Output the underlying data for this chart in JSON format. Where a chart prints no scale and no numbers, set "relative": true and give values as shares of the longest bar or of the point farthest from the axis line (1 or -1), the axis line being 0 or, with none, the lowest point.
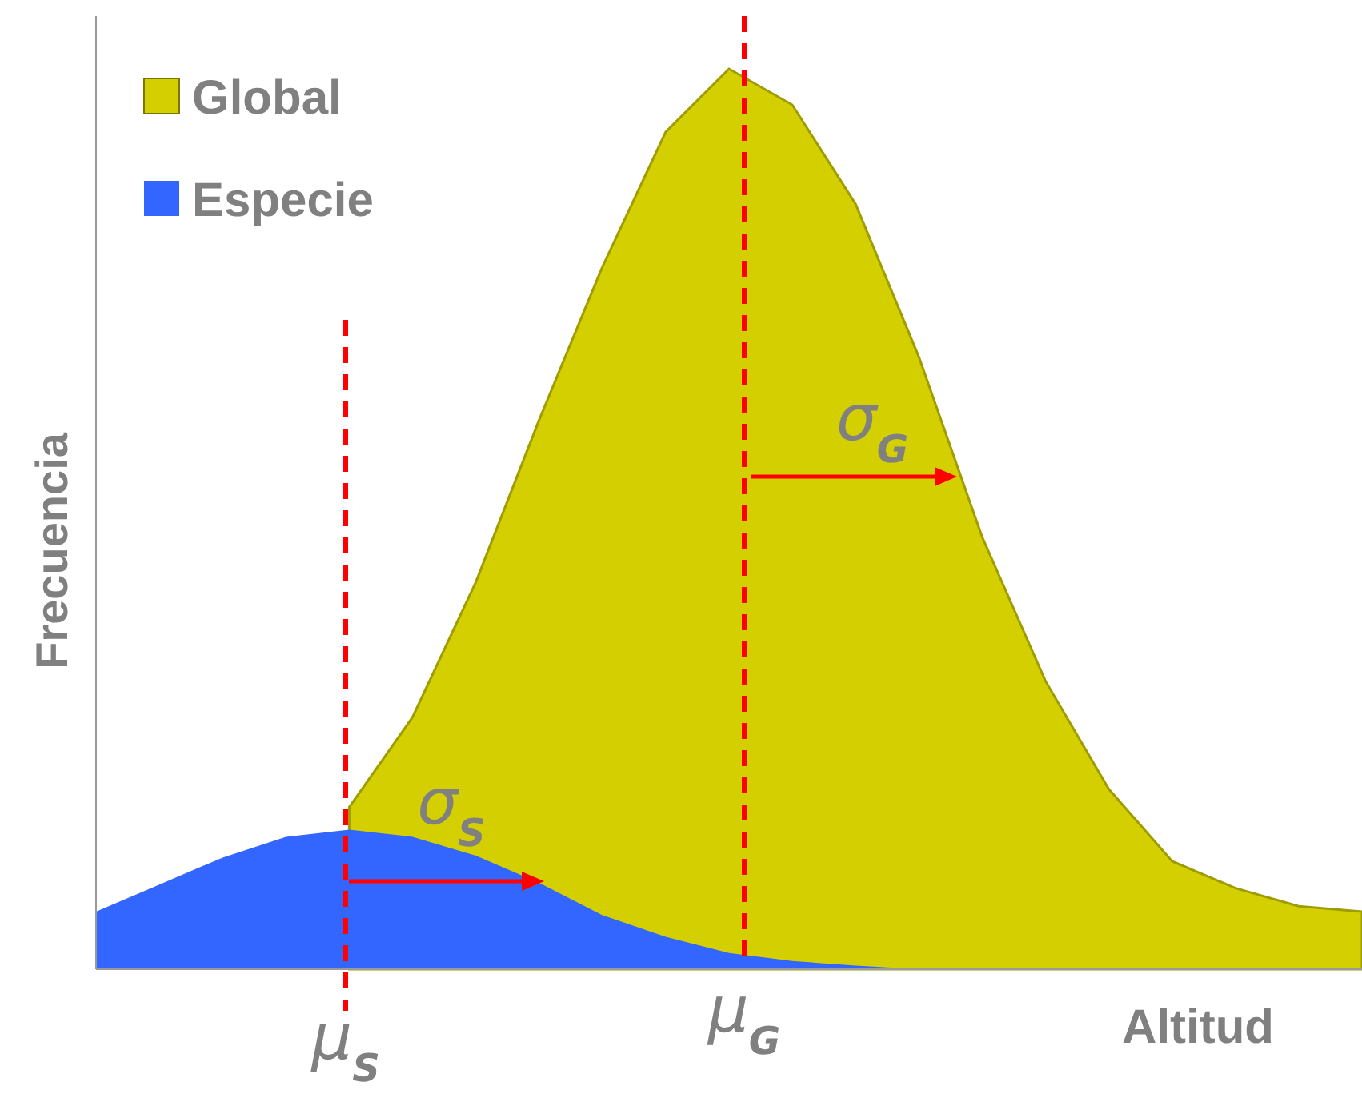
{
  "chart_data": {
    "type": "area",
    "relative": true,
    "xlabel": "Altitud",
    "ylabel": "Frecuencia",
    "legend": "top left",
    "categories": [
      null,
      null,
      null,
      null,
      null,
      null,
      null,
      null,
      null,
      null,
      null,
      null,
      null,
      null,
      null,
      null,
      null,
      null,
      null,
      null,
      null
    ],
    "series": [
      {
        "name": "Global",
        "color": "#d4cf00",
        "values": [
          null,
          null,
          null,
          null,
          0.18,
          0.28,
          0.43,
          0.61,
          0.78,
          0.93,
          1,
          0.96,
          0.85,
          0.68,
          0.48,
          0.32,
          0.2,
          0.12,
          0.09,
          0.07,
          0.064
        ]
      },
      {
        "name": "Especie",
        "color": "#3366ff",
        "values": [
          0.064,
          0.094,
          0.124,
          0.147,
          0.155,
          0.147,
          0.126,
          0.096,
          0.06,
          0.036,
          0.018,
          0.009,
          0.004,
          0,
          0,
          0,
          0,
          0,
          0,
          0,
          0
        ]
      }
    ],
    "annotations": [
      "μ$_{S}$",
      "μ$_{G}$",
      "σ$_{S}$",
      "σ$_{G}$"
    ]
  }
}
